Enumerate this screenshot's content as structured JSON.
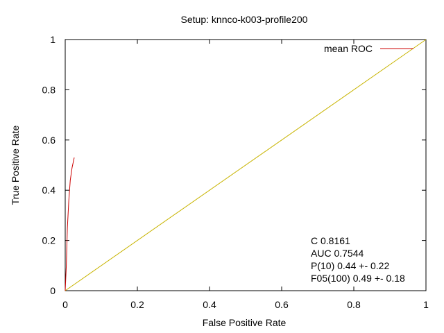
{
  "chart_data": {
    "type": "line",
    "title": "Setup: knnco-k003-profile200",
    "xlabel": "False Positive Rate",
    "ylabel": "True Positive Rate",
    "xlim": [
      0,
      1
    ],
    "ylim": [
      0,
      1
    ],
    "x_ticks": [
      0,
      0.2,
      0.4,
      0.6,
      0.8,
      1
    ],
    "x_tick_labels": [
      "0",
      "0.2",
      "0.4",
      "0.6",
      "0.8",
      "1"
    ],
    "y_ticks": [
      0,
      0.2,
      0.4,
      0.6,
      0.8,
      1
    ],
    "y_tick_labels": [
      "0",
      "0.2",
      "0.4",
      "0.6",
      "0.8",
      "1"
    ],
    "grid": false,
    "legend_position": "top-right",
    "series": [
      {
        "name": "mean ROC",
        "color": "#cc0000",
        "x": [
          0.0,
          0.003,
          0.006,
          0.01,
          0.014,
          0.019,
          0.025
        ],
        "y": [
          0.0,
          0.1,
          0.25,
          0.36,
          0.44,
          0.49,
          0.53
        ]
      },
      {
        "name": "",
        "color": "#c8b400",
        "x": [
          0,
          1
        ],
        "y": [
          0,
          1
        ]
      }
    ],
    "annotations": [
      "C 0.8161",
      "AUC 0.7544",
      "P(10) 0.44 +- 0.22",
      "F05(100) 0.49 +- 0.18"
    ]
  }
}
